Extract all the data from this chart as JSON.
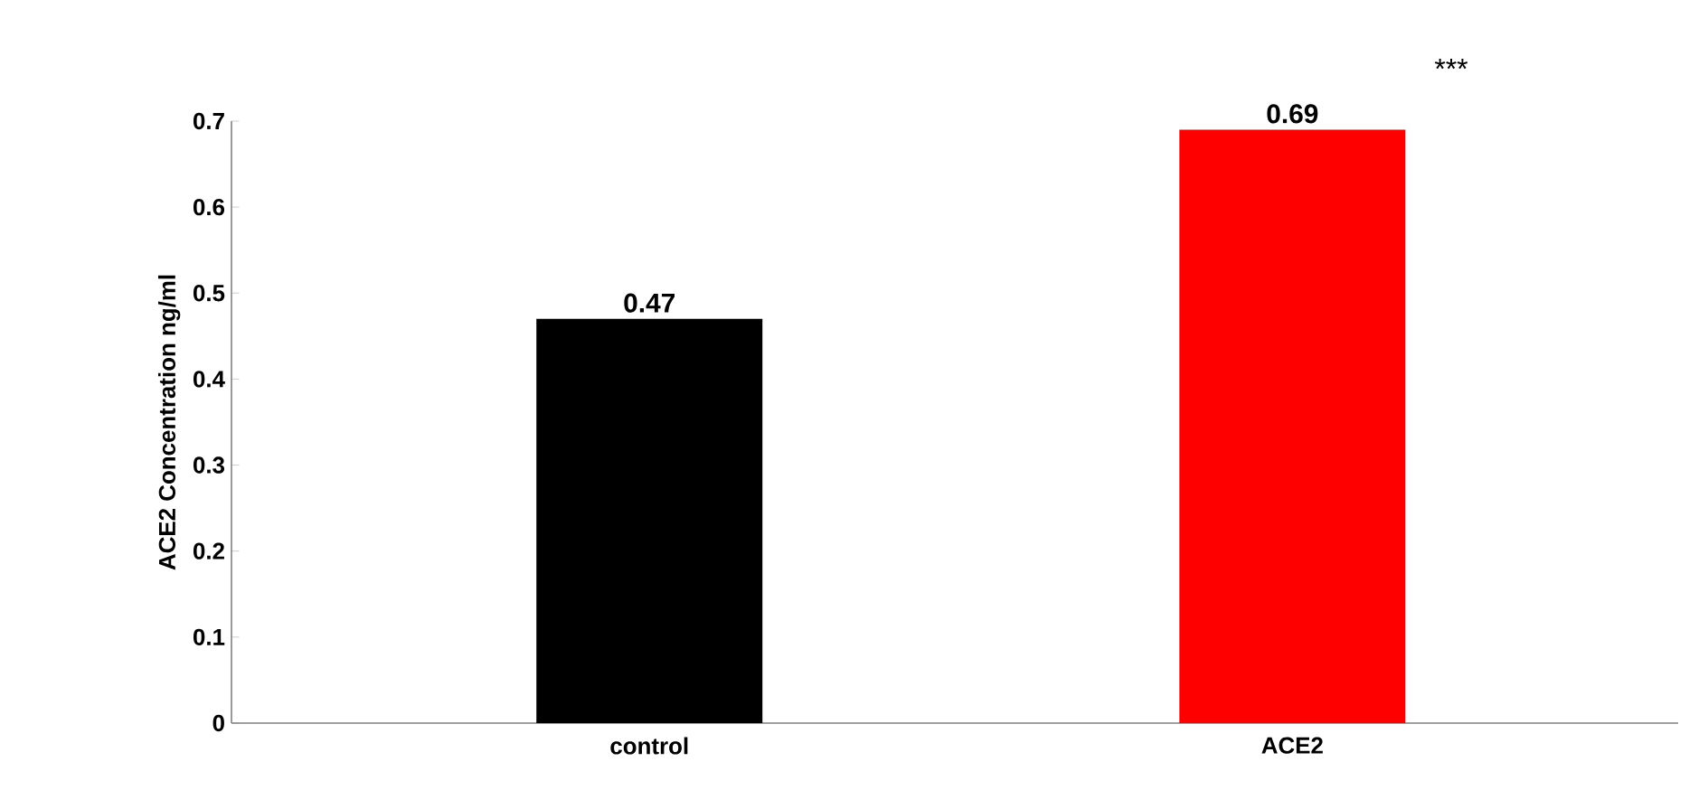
{
  "chart_data": {
    "type": "bar",
    "ylabel": "ACE2 Concentration ng/ml",
    "categories": [
      "control",
      "ACE2"
    ],
    "values": [
      0.47,
      0.69
    ],
    "colors": [
      "#000000",
      "#ff0000"
    ],
    "ylim": [
      0,
      0.7
    ],
    "yticks": [
      0,
      0.1,
      0.2,
      0.3,
      0.4,
      0.5,
      0.6,
      0.7
    ],
    "data_labels": true,
    "grid": false,
    "annotations": [
      "***"
    ]
  }
}
